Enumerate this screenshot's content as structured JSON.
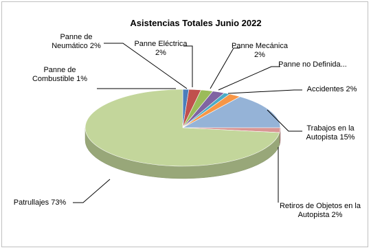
{
  "chart_data": {
    "type": "pie",
    "title": "Asistencias  Totales Junio 2022",
    "pie_style": "3d",
    "start_angle_deg": 270,
    "direction": "clockwise",
    "slices": [
      {
        "label_lines": [
          "Panne de",
          "Combustible 1%"
        ],
        "value": 1,
        "color": "#4a7ebb"
      },
      {
        "label_lines": [
          "Panne de",
          "Neumático 2%"
        ],
        "value": 2,
        "color": "#c0504d"
      },
      {
        "label_lines": [
          "Panne Eléctrica",
          "2%"
        ],
        "value": 2,
        "color": "#9bbb59"
      },
      {
        "label_lines": [
          "Panne Mecánica",
          "2%"
        ],
        "value": 2,
        "color": "#8064a2"
      },
      {
        "label_lines": [
          "Panne no Definida..."
        ],
        "value": 1,
        "color": "#4bacc6"
      },
      {
        "label_lines": [
          "Accidentes 2%"
        ],
        "value": 2,
        "color": "#f79646"
      },
      {
        "label_lines": [
          "Trabajos en la",
          "Autopista 15%"
        ],
        "value": 15,
        "color": "#95b3d7"
      },
      {
        "label_lines": [
          "Retiros de Objetos en la",
          "Autopista 2%"
        ],
        "value": 2,
        "color": "#d99694"
      },
      {
        "label_lines": [
          "Patrullajes 73%"
        ],
        "value": 73,
        "color": "#c3d69b"
      }
    ]
  }
}
